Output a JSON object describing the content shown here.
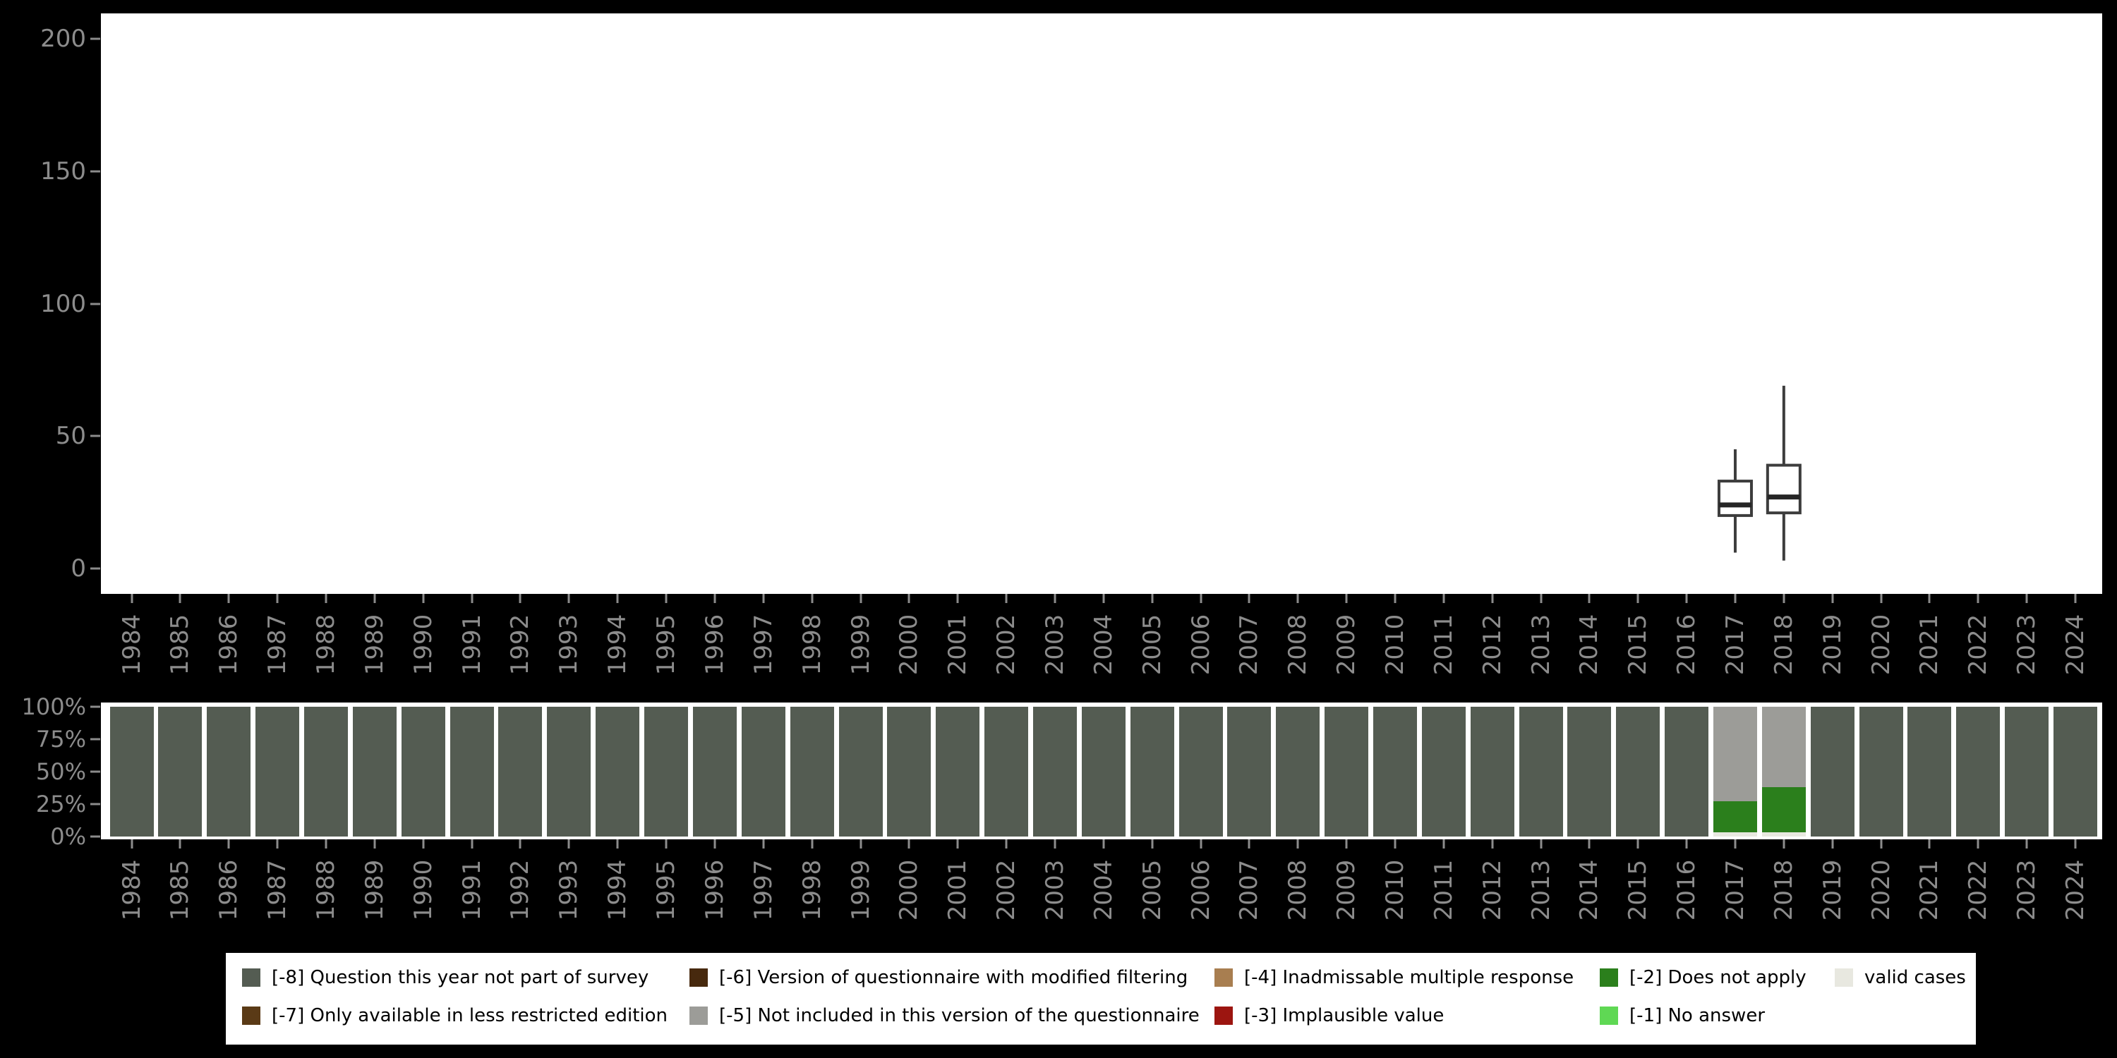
{
  "page": {
    "background": "#000000",
    "plot_background": "#ffffff",
    "axis_text_color": "#8c8c8c"
  },
  "years": [
    "1984",
    "1985",
    "1986",
    "1987",
    "1988",
    "1989",
    "1990",
    "1991",
    "1992",
    "1993",
    "1994",
    "1995",
    "1996",
    "1997",
    "1998",
    "1999",
    "2000",
    "2001",
    "2002",
    "2003",
    "2004",
    "2005",
    "2006",
    "2007",
    "2008",
    "2009",
    "2010",
    "2011",
    "2012",
    "2013",
    "2014",
    "2015",
    "2016",
    "2017",
    "2018",
    "2019",
    "2020",
    "2021",
    "2022",
    "2023",
    "2024"
  ],
  "palette": {
    "q_not_part": "#545c52",
    "less_restricted": "#5a3a16",
    "modified_filtering": "#47290e",
    "not_included_version": "#9c9c98",
    "inadmissable_multiple": "#a87e50",
    "implausible": "#9c1510",
    "does_not_apply": "#2b7f1c",
    "no_answer": "#5fd854",
    "valid": "#e8e8e0"
  },
  "boxplot_style": {
    "stroke": "#3d3d3d",
    "median_stroke": "#262626",
    "fill": "#ffffff"
  },
  "chart_data": [
    {
      "type": "boxplot",
      "x_axis": "survey years 1984-2024",
      "ylim": [
        0,
        200
      ],
      "y_ticks": [
        0,
        50,
        100,
        150,
        200
      ],
      "boxes": [
        {
          "year": "2017",
          "whisker_low": 6,
          "q1": 20,
          "median": 24,
          "q3": 33,
          "whisker_high": 45
        },
        {
          "year": "2018",
          "whisker_low": 3,
          "q1": 21,
          "median": 27,
          "q3": 39,
          "whisker_high": 69
        }
      ]
    },
    {
      "type": "bar",
      "stacked": true,
      "unit": "percent",
      "y_ticks": [
        {
          "label": "100%",
          "pct": 100
        },
        {
          "label": "75%",
          "pct": 75
        },
        {
          "label": "50%",
          "pct": 50
        },
        {
          "label": "25%",
          "pct": 25
        },
        {
          "label": "0%",
          "pct": 0
        }
      ],
      "default_segment": {
        "key": "q_not_part",
        "pct": 100
      },
      "bars": [
        {
          "year": "2017",
          "segments": [
            {
              "key": "valid",
              "pct": 3
            },
            {
              "key": "does_not_apply",
              "pct": 24
            },
            {
              "key": "not_included_version",
              "pct": 73
            }
          ]
        },
        {
          "year": "2018",
          "segments": [
            {
              "key": "valid",
              "pct": 3
            },
            {
              "key": "does_not_apply",
              "pct": 35
            },
            {
              "key": "not_included_version",
              "pct": 62
            }
          ]
        }
      ]
    }
  ],
  "legend": {
    "rows": [
      [
        {
          "key": "q_not_part",
          "label": "[-8] Question this year not part of survey"
        },
        {
          "key": "modified_filtering",
          "label": "[-6] Version of questionnaire with modified filtering"
        },
        {
          "key": "inadmissable_multiple",
          "label": "[-4] Inadmissable multiple response"
        },
        {
          "key": "does_not_apply",
          "label": "[-2] Does not apply"
        },
        {
          "key": "valid",
          "label": "valid cases"
        }
      ],
      [
        {
          "key": "less_restricted",
          "label": "[-7] Only available in less restricted edition"
        },
        {
          "key": "not_included_version",
          "label": "[-5] Not included in this version of the questionnaire"
        },
        {
          "key": "implausible",
          "label": "[-3] Implausible value"
        },
        {
          "key": "no_answer",
          "label": "[-1] No answer"
        }
      ]
    ]
  }
}
